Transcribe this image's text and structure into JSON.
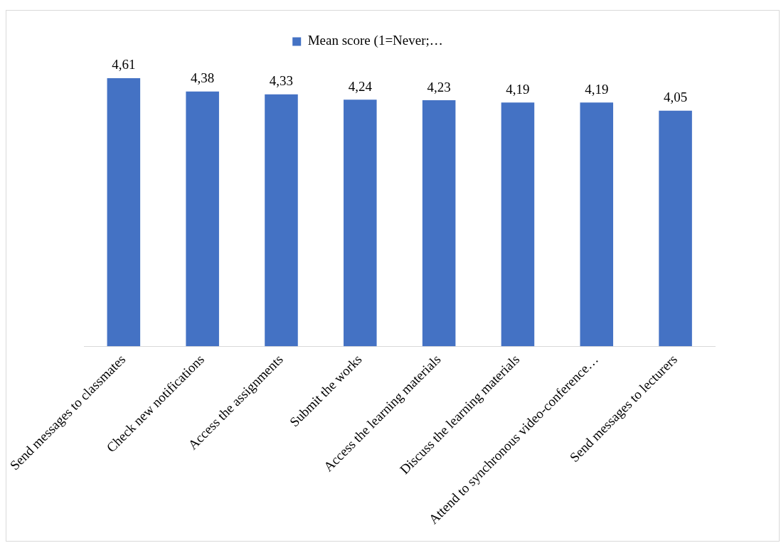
{
  "chart_data": {
    "type": "bar",
    "categories": [
      "Send messages to classmates",
      "Check new notifications",
      "Access the assignments",
      "Submit the works",
      "Access the learning materials",
      "Discuss the learning materials",
      "Attend to synchronous video-conference…",
      "Send messages to lecturers"
    ],
    "series": [
      {
        "name": "Mean score (1=Never;…",
        "color": "#4472c4",
        "values": [
          4.61,
          4.38,
          4.33,
          4.24,
          4.23,
          4.19,
          4.19,
          4.05
        ],
        "value_labels": [
          "4,61",
          "4,38",
          "4,33",
          "4,24",
          "4,23",
          "4,19",
          "4,19",
          "4,05"
        ]
      }
    ],
    "legend": "top",
    "grid": false
  }
}
